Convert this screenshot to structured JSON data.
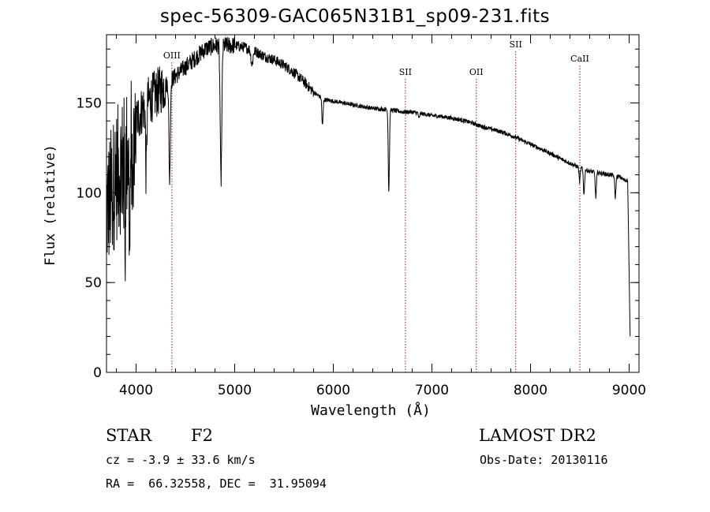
{
  "chart_data": {
    "type": "line",
    "title": "spec-56309-GAC065N31B1_sp09-231.fits",
    "xlabel": "Wavelength (Å)",
    "ylabel": "Flux (relative)",
    "xlim": [
      3700,
      9100
    ],
    "ylim": [
      0,
      188
    ],
    "xticks": [
      4000,
      5000,
      6000,
      7000,
      8000,
      9000
    ],
    "yticks": [
      0,
      50,
      100,
      150
    ],
    "x_minor_step": 200,
    "y_minor_step": 10,
    "line_color": "#000000",
    "marker_color": "#8b1a1a",
    "lines": [
      {
        "name": "OIII",
        "x": 4363
      },
      {
        "name": "SII",
        "x": 6731
      },
      {
        "name": "OII",
        "x": 7450
      },
      {
        "name": "SII",
        "x": 7850
      },
      {
        "name": "CaII",
        "x": 8500
      }
    ],
    "continuum": [
      [
        3700,
        90
      ],
      [
        3800,
        110
      ],
      [
        3900,
        120
      ],
      [
        4000,
        140
      ],
      [
        4100,
        150
      ],
      [
        4200,
        155
      ],
      [
        4300,
        160
      ],
      [
        4400,
        165
      ],
      [
        4500,
        170
      ],
      [
        4600,
        175
      ],
      [
        4700,
        180
      ],
      [
        4800,
        182
      ],
      [
        4900,
        182
      ],
      [
        5000,
        182
      ],
      [
        5100,
        181
      ],
      [
        5200,
        179
      ],
      [
        5300,
        176
      ],
      [
        5400,
        174
      ],
      [
        5500,
        171
      ],
      [
        5600,
        167
      ],
      [
        5700,
        162
      ],
      [
        5800,
        156
      ],
      [
        5900,
        152
      ],
      [
        6000,
        151
      ],
      [
        6100,
        150
      ],
      [
        6200,
        149
      ],
      [
        6300,
        148
      ],
      [
        6400,
        147
      ],
      [
        6500,
        146.5
      ],
      [
        6600,
        146
      ],
      [
        6700,
        145
      ],
      [
        6800,
        145
      ],
      [
        6900,
        144
      ],
      [
        7000,
        143
      ],
      [
        7100,
        142.5
      ],
      [
        7200,
        141.5
      ],
      [
        7300,
        140.5
      ],
      [
        7400,
        139
      ],
      [
        7500,
        137
      ],
      [
        7600,
        135.5
      ],
      [
        7700,
        134
      ],
      [
        7800,
        132
      ],
      [
        7900,
        129.5
      ],
      [
        8000,
        127
      ],
      [
        8100,
        124.5
      ],
      [
        8200,
        122
      ],
      [
        8300,
        119
      ],
      [
        8400,
        116.5
      ],
      [
        8500,
        114
      ],
      [
        8600,
        112
      ],
      [
        8700,
        111
      ],
      [
        8800,
        110
      ],
      [
        8900,
        109
      ],
      [
        8950,
        107
      ]
    ],
    "absorption_features": [
      {
        "x": 3889,
        "depth": 30,
        "width": 4
      },
      {
        "x": 3934,
        "depth": 60,
        "width": 5
      },
      {
        "x": 3968,
        "depth": 60,
        "width": 5
      },
      {
        "x": 4102,
        "depth": 40,
        "width": 6
      },
      {
        "x": 4340,
        "depth": 55,
        "width": 7
      },
      {
        "x": 4861,
        "depth": 75,
        "width": 8
      },
      {
        "x": 5175,
        "depth": 8,
        "width": 10
      },
      {
        "x": 5890,
        "depth": 15,
        "width": 6
      },
      {
        "x": 6563,
        "depth": 45,
        "width": 6
      },
      {
        "x": 6870,
        "depth": 3,
        "width": 6
      },
      {
        "x": 8498,
        "depth": 8,
        "width": 6
      },
      {
        "x": 8542,
        "depth": 14,
        "width": 6
      },
      {
        "x": 8662,
        "depth": 14,
        "width": 6
      },
      {
        "x": 8860,
        "depth": 12,
        "width": 6
      }
    ],
    "red_edge": {
      "x_start": 8985,
      "x_end": 9010,
      "y_end": 20
    }
  },
  "info": {
    "object_class": "STAR",
    "subclass": "F2",
    "survey": "LAMOST DR2",
    "velocity": "cz = -3.9 ± 33.6 km/s",
    "obs_date": "Obs-Date: 20130116",
    "coords": "RA =  66.32558, DEC =  31.95094"
  }
}
